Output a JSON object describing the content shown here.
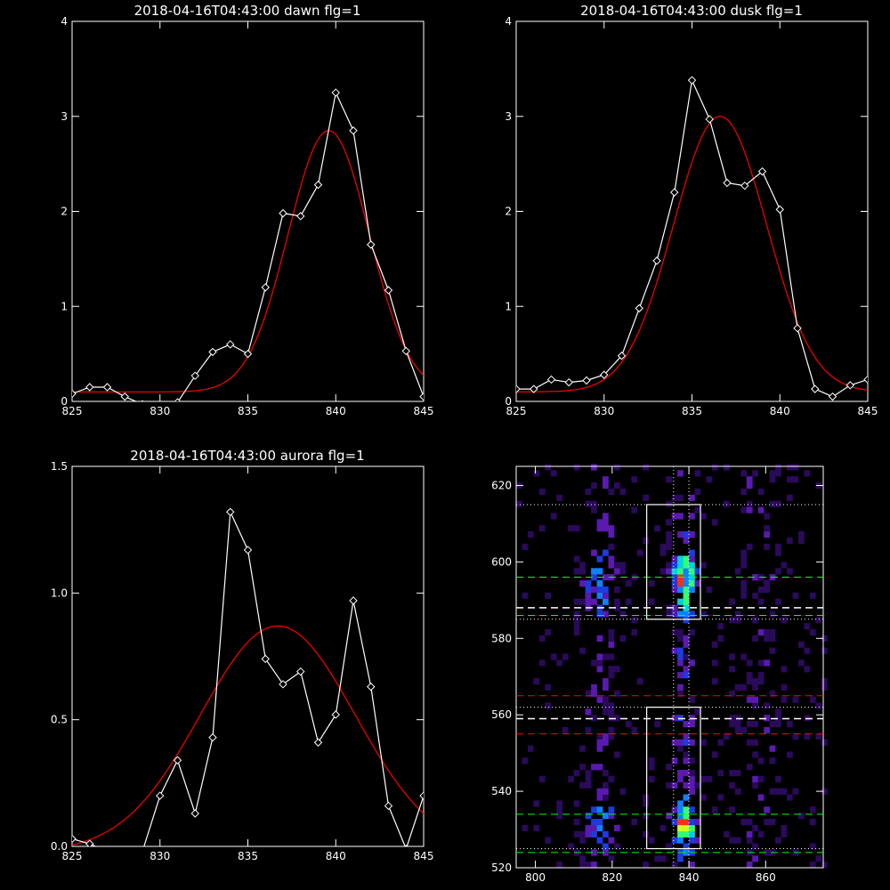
{
  "chart_data": [
    {
      "type": "line",
      "title": "2018-04-16T04:43:00 dawn flg=1",
      "xlim": [
        825,
        845
      ],
      "ylim": [
        0,
        4
      ],
      "xticks": [
        825,
        830,
        835,
        840,
        845
      ],
      "yticks": [
        0,
        1,
        2,
        3,
        4
      ],
      "ytick_labels": [
        "0",
        "1",
        "2",
        "3",
        "4"
      ],
      "series": [
        {
          "color": "#ffffff",
          "marker": "diamond",
          "x": [
            825,
            826,
            827,
            828,
            829,
            830,
            831,
            832,
            833,
            834,
            835,
            836,
            837,
            838,
            839,
            840,
            841,
            842,
            843,
            844,
            845
          ],
          "y": [
            0.08,
            0.15,
            0.15,
            0.05,
            -0.03,
            -0.05,
            -0.01,
            0.27,
            0.52,
            0.6,
            0.5,
            1.2,
            1.98,
            1.95,
            2.28,
            3.25,
            2.85,
            1.65,
            1.17,
            0.53,
            0.05
          ]
        },
        {
          "color": "#ff0000",
          "marker": "none",
          "fit": {
            "baseline": 0.1,
            "amp": 2.75,
            "center": 839.6,
            "sigma": 2.3
          }
        }
      ]
    },
    {
      "type": "line",
      "title": "2018-04-16T04:43:00 dusk flg=1",
      "xlim": [
        825,
        845
      ],
      "ylim": [
        0,
        4
      ],
      "xticks": [
        825,
        830,
        835,
        840,
        845
      ],
      "yticks": [
        0,
        1,
        2,
        3,
        4
      ],
      "ytick_labels": [
        "0",
        "1",
        "2",
        "3",
        "4"
      ],
      "series": [
        {
          "color": "#ffffff",
          "marker": "diamond",
          "x": [
            825,
            826,
            827,
            828,
            829,
            830,
            831,
            832,
            833,
            834,
            835,
            836,
            837,
            838,
            839,
            840,
            841,
            842,
            843,
            844,
            845
          ],
          "y": [
            0.13,
            0.13,
            0.23,
            0.2,
            0.22,
            0.28,
            0.48,
            0.98,
            1.48,
            2.2,
            3.38,
            2.97,
            2.3,
            2.27,
            2.42,
            2.02,
            0.77,
            0.13,
            0.05,
            0.17,
            0.23
          ]
        },
        {
          "color": "#ff0000",
          "marker": "none",
          "fit": {
            "baseline": 0.1,
            "amp": 2.9,
            "center": 836.6,
            "sigma": 2.65
          }
        }
      ]
    },
    {
      "type": "line",
      "title": "2018-04-16T04:43:00 aurora flg=1",
      "xlim": [
        825,
        845
      ],
      "ylim": [
        0,
        1.5
      ],
      "xticks": [
        825,
        830,
        835,
        840,
        845
      ],
      "yticks": [
        0,
        0.5,
        1.0,
        1.5
      ],
      "ytick_labels": [
        "0.0",
        "0.5",
        "1.0",
        "1.5"
      ],
      "series": [
        {
          "color": "#ffffff",
          "marker": "diamond",
          "x": [
            825,
            826,
            827,
            828,
            829,
            830,
            831,
            832,
            833,
            834,
            835,
            836,
            837,
            838,
            839,
            840,
            841,
            842,
            843,
            844,
            845
          ],
          "y": [
            0.03,
            0.01,
            -0.02,
            -0.03,
            -0.02,
            0.2,
            0.34,
            0.13,
            0.43,
            1.32,
            1.17,
            0.74,
            0.64,
            0.69,
            0.41,
            0.52,
            0.97,
            0.63,
            0.16,
            -0.01,
            0.2
          ]
        },
        {
          "color": "#ff0000",
          "marker": "none",
          "fit": {
            "baseline": -0.02,
            "amp": 0.89,
            "center": 836.7,
            "sigma": 4.4
          }
        }
      ]
    },
    {
      "type": "heatmap",
      "xlim": [
        795,
        875
      ],
      "ylim": [
        520,
        625
      ],
      "xticks": [
        800,
        820,
        840,
        860
      ],
      "yticks": [
        520,
        540,
        560,
        580,
        600,
        620
      ],
      "colormap": [
        "#2a0a5a",
        "#5a1ab0",
        "#1a3ce0",
        "#1080ff",
        "#00d0e0",
        "#30ff70",
        "#d0ff20",
        "#ff3010"
      ],
      "boxes": [
        {
          "x0": 829,
          "x1": 843,
          "y0": 585,
          "y1": 615
        },
        {
          "x0": 829,
          "x1": 843,
          "y0": 525,
          "y1": 562
        }
      ],
      "dotted_vlines": [
        836,
        840
      ],
      "dotted_hlines": [
        615,
        585,
        562,
        525
      ],
      "white_dashed_hlines": [
        588,
        559
      ],
      "green_dashed_hlines": [
        596,
        586,
        534,
        524
      ],
      "red_dashed_hlines": [
        565,
        555
      ],
      "line_colors": {
        "box": "#ffffff",
        "green": "#00ff00",
        "red": "#ff0000",
        "white": "#ffffff"
      }
    }
  ]
}
